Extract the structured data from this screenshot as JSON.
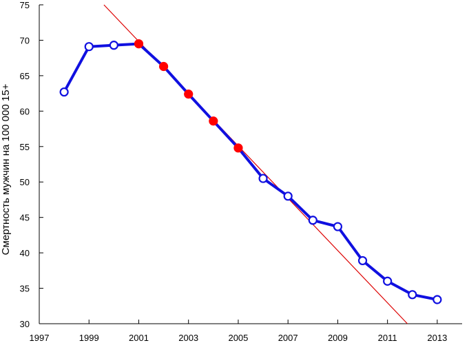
{
  "chart_data": {
    "type": "line",
    "title": "",
    "xlabel": "",
    "ylabel": "Смертность мужчин на 100 000 15+",
    "xlim": [
      1997,
      2014
    ],
    "ylim": [
      30,
      75
    ],
    "x_ticks": [
      1997,
      1999,
      2001,
      2003,
      2005,
      2007,
      2009,
      2011,
      2013
    ],
    "y_ticks": [
      30,
      35,
      40,
      45,
      50,
      55,
      60,
      65,
      70,
      75
    ],
    "grid": false,
    "legend": "none",
    "colors": {
      "line": "#1010e0",
      "marker_open_fill": "#ffffff",
      "marker_highlight": "#ff0000",
      "trend": "#dd0000"
    },
    "series": [
      {
        "x": [
          1998,
          1999,
          2000,
          2001,
          2002,
          2003,
          2004,
          2005,
          2006,
          2007,
          2008,
          2009,
          2010,
          2011,
          2012,
          2013
        ],
        "values": [
          62.7,
          69.1,
          69.3,
          69.5,
          66.3,
          62.4,
          58.6,
          54.8,
          50.5,
          48.0,
          44.6,
          43.7,
          38.9,
          36.0,
          34.1,
          33.4
        ],
        "highlighted_x": [
          2001,
          2002,
          2003,
          2004,
          2005
        ]
      }
    ],
    "trendline": {
      "from": [
        1999.6,
        75
      ],
      "to": [
        2011.8,
        30
      ]
    }
  }
}
